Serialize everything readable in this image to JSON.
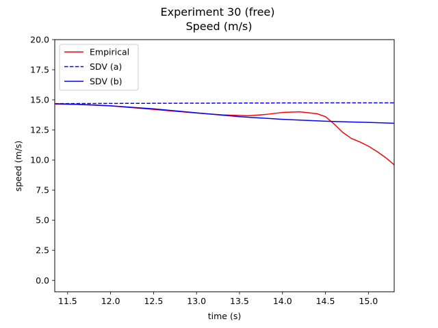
{
  "chart_data": {
    "type": "line",
    "title": "Experiment 30 (free)",
    "subtitle": "Speed (m/s)",
    "xlabel": "time (s)",
    "ylabel": "speed (m/s)",
    "xlim": [
      11.35,
      15.3
    ],
    "ylim": [
      -0.95,
      20.0
    ],
    "xticks": [
      11.5,
      12.0,
      12.5,
      13.0,
      13.5,
      14.0,
      14.5,
      15.0
    ],
    "xtick_labels": [
      "11.5",
      "12.0",
      "12.5",
      "13.0",
      "13.5",
      "14.0",
      "14.5",
      "15.0"
    ],
    "yticks": [
      0.0,
      2.5,
      5.0,
      7.5,
      10.0,
      12.5,
      15.0,
      17.5,
      20.0
    ],
    "ytick_labels": [
      "0.0",
      "2.5",
      "5.0",
      "7.5",
      "10.0",
      "12.5",
      "15.0",
      "17.5",
      "20.0"
    ],
    "grid": false,
    "legend_position": "top-left",
    "series": [
      {
        "name": "Empirical",
        "color": "#ff0000",
        "style": "solid",
        "x": [
          11.35,
          11.6,
          12.0,
          12.5,
          13.0,
          13.3,
          13.6,
          13.8,
          14.0,
          14.2,
          14.4,
          14.5,
          14.6,
          14.7,
          14.8,
          14.9,
          15.0,
          15.1,
          15.2,
          15.3
        ],
        "y": [
          14.65,
          14.62,
          14.5,
          14.2,
          13.9,
          13.75,
          13.68,
          13.78,
          13.95,
          14.0,
          13.85,
          13.6,
          13.0,
          12.3,
          11.8,
          11.5,
          11.15,
          10.7,
          10.2,
          9.6
        ]
      },
      {
        "name": "SDV (a)",
        "color": "#0000ff",
        "style": "dashed",
        "x": [
          11.35,
          12.0,
          13.0,
          14.0,
          15.0,
          15.3
        ],
        "y": [
          14.68,
          14.7,
          14.72,
          14.74,
          14.75,
          14.75
        ]
      },
      {
        "name": "SDV (b)",
        "color": "#0000ff",
        "style": "solid",
        "x": [
          11.35,
          11.6,
          12.0,
          12.5,
          13.0,
          13.5,
          14.0,
          14.5,
          15.0,
          15.3
        ],
        "y": [
          14.68,
          14.63,
          14.5,
          14.25,
          13.92,
          13.6,
          13.38,
          13.22,
          13.12,
          13.05
        ]
      }
    ]
  }
}
